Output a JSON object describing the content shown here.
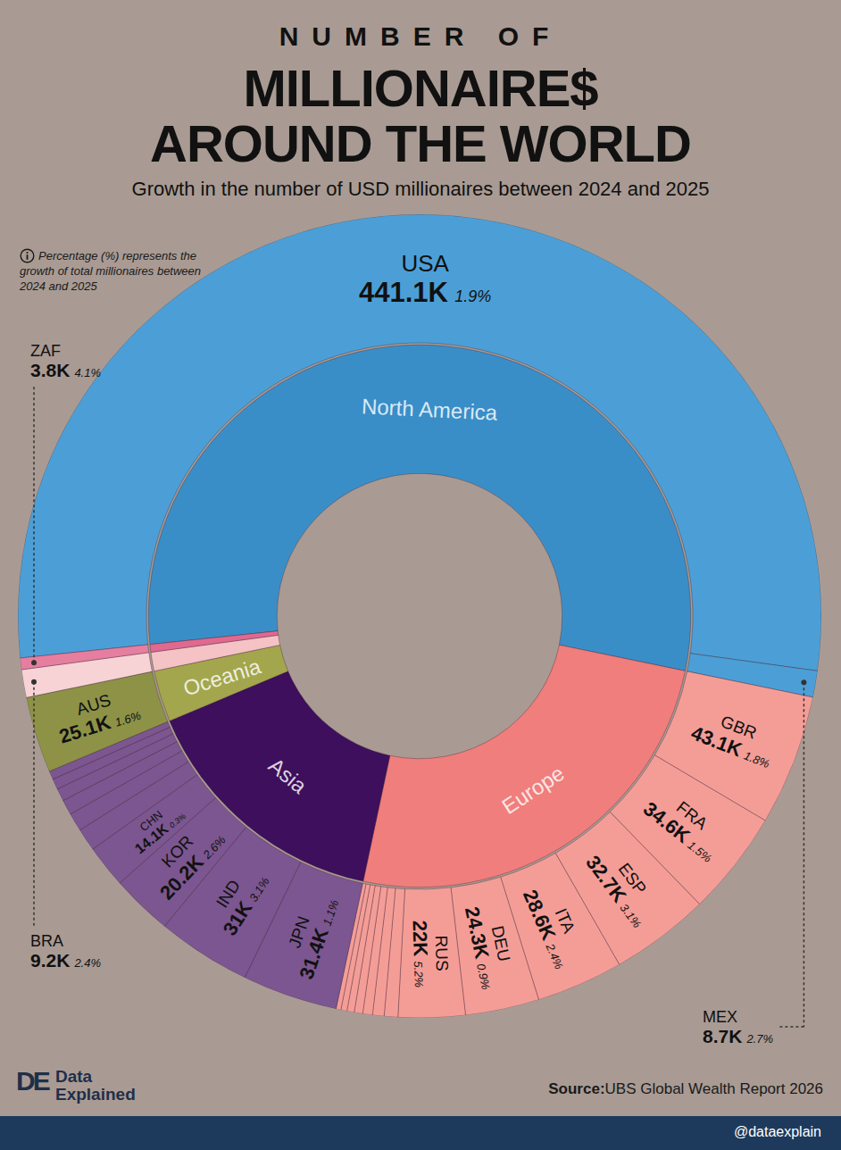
{
  "chart_data": {
    "type": "sunburst",
    "title": [
      "NUMBER OF",
      "MILLIONAIRE$",
      "AROUND THE WORLD"
    ],
    "subtitle": "Growth in the number of USD millionaires between 2024 and 2025",
    "annotations": [
      "Percentage (%) represents the growth of total millionaires between 2024 and 2025"
    ],
    "source_label": "Source:",
    "source": "UBS Global Wealth Report 2026",
    "logo": "DE",
    "brand": "Data Explained",
    "handle": "@dataexplain",
    "data_labels": true,
    "series": [
      {
        "name": "North America",
        "color": "#3a8ec8",
        "categories": [
          "USA",
          "MEX"
        ],
        "values": [
          441.1,
          8.7
        ],
        "value_labels": [
          "441.1K",
          "8.7K"
        ],
        "growth": [
          1.9,
          2.7
        ],
        "growth_labels": [
          "1.9%",
          "2.7%"
        ],
        "colors": [
          "#4c9fd6",
          "#4c9fd6"
        ]
      },
      {
        "name": "Europe",
        "color": "#f07e7c",
        "categories": [
          "GBR",
          "FRA",
          "ESP",
          "ITA",
          "DEU",
          "RUS",
          null,
          null,
          null,
          null,
          null,
          null,
          null
        ],
        "values": [
          43.1,
          34.6,
          32.7,
          28.6,
          24.3,
          22,
          4.5,
          3.8,
          3.2,
          2.8,
          2.4,
          2.0,
          1.6
        ],
        "value_labels": [
          "43.1K",
          "34.6K",
          "32.7K",
          "28.6K",
          "24.3K",
          "22K",
          null,
          null,
          null,
          null,
          null,
          null,
          null
        ],
        "growth": [
          1.8,
          1.5,
          3.1,
          2.4,
          0.9,
          5.2,
          null,
          null,
          null,
          null,
          null,
          null,
          null
        ],
        "growth_labels": [
          "1.8%",
          "1.5%",
          "3.1%",
          "2.4%",
          "0.9%",
          "5.2%",
          null,
          null,
          null,
          null,
          null,
          null,
          null
        ],
        "colors": [
          "#f49d97",
          "#f49d97",
          "#f49d97",
          "#f49d97",
          "#f49d97",
          "#f49d97",
          "#f49d97",
          "#f49d97",
          "#f49d97",
          "#f49d97",
          "#f49d97",
          "#f49d97",
          "#f49d97"
        ]
      },
      {
        "name": "Asia",
        "color": "#3d0f5c",
        "categories": [
          "JPN",
          "IND",
          "KOR",
          "CHN",
          null,
          null,
          null,
          null,
          null,
          null
        ],
        "values": [
          31.4,
          31,
          20.2,
          14.1,
          7.5,
          6.0,
          5.0,
          4.2,
          3.5,
          2.8
        ],
        "value_labels": [
          "31.4K",
          "31K",
          "20.2K",
          "14.1K",
          null,
          null,
          null,
          null,
          null,
          null
        ],
        "growth": [
          1.1,
          3.1,
          2.6,
          0.3,
          null,
          null,
          null,
          null,
          null,
          null
        ],
        "growth_labels": [
          "1.1%",
          "3.1%",
          "2.6%",
          "0.3%",
          null,
          null,
          null,
          null,
          null,
          null
        ],
        "colors": [
          "#7c5690",
          "#7c5690",
          "#7c5690",
          "#7c5690",
          "#7c5690",
          "#7c5690",
          "#7c5690",
          "#7c5690",
          "#7c5690",
          "#7c5690"
        ]
      },
      {
        "name": "Oceania",
        "color": "#a3a64c",
        "categories": [
          "AUS"
        ],
        "values": [
          25.1
        ],
        "value_labels": [
          "25.1K"
        ],
        "growth": [
          1.6
        ],
        "growth_labels": [
          "1.6%"
        ],
        "colors": [
          "#8d9247"
        ]
      },
      {
        "name": null,
        "color": "#f5c2c6",
        "categories": [
          "BRA"
        ],
        "values": [
          9.2
        ],
        "value_labels": [
          "9.2K"
        ],
        "growth": [
          2.4
        ],
        "growth_labels": [
          "2.4%"
        ],
        "colors": [
          "#f7d3d6"
        ]
      },
      {
        "name": null,
        "color": "#e0698f",
        "categories": [
          "ZAF"
        ],
        "values": [
          3.8
        ],
        "value_labels": [
          "3.8K"
        ],
        "growth": [
          4.1
        ],
        "growth_labels": [
          "4.1%"
        ],
        "colors": [
          "#e67ea0"
        ]
      }
    ]
  }
}
